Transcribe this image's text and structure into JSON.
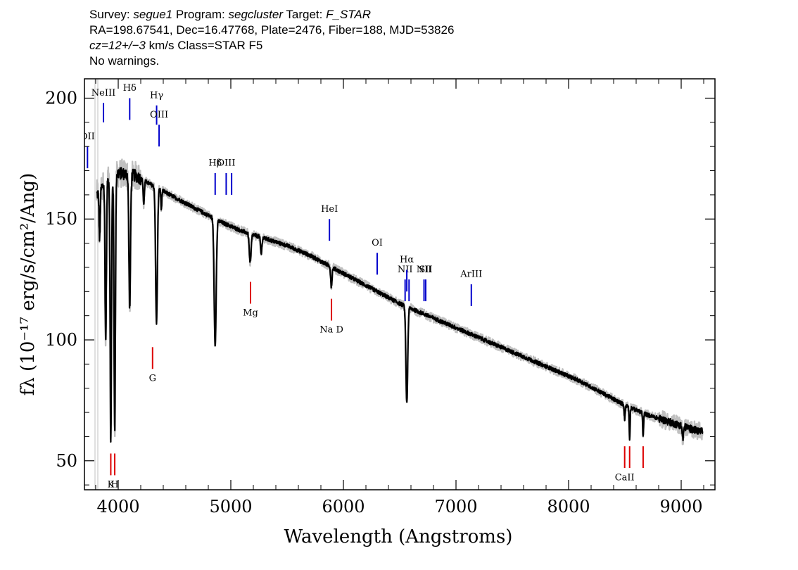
{
  "header": {
    "line1": {
      "survey_label": "Survey: ",
      "survey": "segue1",
      "program_label": " Program: ",
      "program": "segcluster",
      "target_label": " Target: ",
      "target": "F_STAR"
    },
    "line2": "RA=198.67541, Dec=16.47768, Plate=2476, Fiber=188, MJD=53826",
    "line3": {
      "cz": "cz=12+/−3",
      "rest": " km/s Class=STAR F5"
    },
    "line4": "No warnings."
  },
  "chart_data": {
    "type": "line",
    "xlabel": "Wavelength (Angstroms)",
    "ylabel": "fλ (10⁻¹⁷ erg/s/cm²/Ang)",
    "xlim": [
      3700,
      9300
    ],
    "ylim": [
      38,
      208
    ],
    "x_ticks": [
      4000,
      5000,
      6000,
      7000,
      8000,
      9000
    ],
    "y_ticks": [
      50,
      100,
      150,
      200
    ],
    "colors": {
      "flux": "#000000",
      "error": "#c0c0c0",
      "emission": "#0000cc",
      "absorption": "#dd0000"
    },
    "continuum": [
      [
        3810,
        160
      ],
      [
        3900,
        166
      ],
      [
        4000,
        169
      ],
      [
        4150,
        168
      ],
      [
        4300,
        164
      ],
      [
        4500,
        159
      ],
      [
        4700,
        154
      ],
      [
        4900,
        149
      ],
      [
        5100,
        145
      ],
      [
        5300,
        142
      ],
      [
        5500,
        139
      ],
      [
        5700,
        135
      ],
      [
        5900,
        130
      ],
      [
        6100,
        125
      ],
      [
        6300,
        120
      ],
      [
        6500,
        115
      ],
      [
        6700,
        111
      ],
      [
        6900,
        107
      ],
      [
        7100,
        103
      ],
      [
        7300,
        99
      ],
      [
        7500,
        95
      ],
      [
        7700,
        91
      ],
      [
        7900,
        87
      ],
      [
        8100,
        83
      ],
      [
        8300,
        78
      ],
      [
        8500,
        73
      ],
      [
        8700,
        69
      ],
      [
        8900,
        66
      ],
      [
        9100,
        63
      ],
      [
        9190,
        62
      ]
    ],
    "absorption_features": [
      {
        "center": 3835,
        "depth": 20,
        "width": 5
      },
      {
        "center": 3889,
        "depth": 66,
        "width": 6
      },
      {
        "center": 3934,
        "depth": 108,
        "width": 6
      },
      {
        "center": 3969,
        "depth": 105,
        "width": 6
      },
      {
        "center": 4102,
        "depth": 55,
        "width": 7
      },
      {
        "center": 4227,
        "depth": 10,
        "width": 5
      },
      {
        "center": 4340,
        "depth": 56,
        "width": 8
      },
      {
        "center": 4383,
        "depth": 8,
        "width": 4
      },
      {
        "center": 4861,
        "depth": 52,
        "width": 9
      },
      {
        "center": 5172,
        "depth": 12,
        "width": 8
      },
      {
        "center": 5270,
        "depth": 7,
        "width": 6
      },
      {
        "center": 5893,
        "depth": 8,
        "width": 6
      },
      {
        "center": 6563,
        "depth": 40,
        "width": 8
      },
      {
        "center": 8498,
        "depth": 6,
        "width": 4
      },
      {
        "center": 8542,
        "depth": 13,
        "width": 4
      },
      {
        "center": 8662,
        "depth": 10,
        "width": 4
      },
      {
        "center": 9015,
        "depth": 5,
        "width": 6
      }
    ],
    "line_markers": [
      {
        "label": "OII",
        "x": 3727,
        "y_top": 180,
        "y_bottom": 171,
        "color": "emission",
        "label_y": 183
      },
      {
        "label": "NeIII",
        "x": 3869,
        "y_top": 198,
        "y_bottom": 190,
        "color": "emission",
        "label_y": 201
      },
      {
        "label": "Hδ",
        "x": 4102,
        "y_top": 200,
        "y_bottom": 191,
        "color": "emission",
        "label_y": 203
      },
      {
        "label": "Hγ",
        "x": 4341,
        "y_top": 197,
        "y_bottom": 189,
        "color": "emission",
        "label_y": 200
      },
      {
        "label": "OIII",
        "x": 4363,
        "y_top": 189,
        "y_bottom": 180,
        "color": "emission",
        "label_y": 192
      },
      {
        "label": "Hβ",
        "x": 4861,
        "y_top": 169,
        "y_bottom": 160,
        "color": "emission",
        "label_y": 172
      },
      {
        "label": "OIII",
        "x": 4959,
        "y_top": 169,
        "y_bottom": 160,
        "color": "emission",
        "label_y": 172
      },
      {
        "label": "",
        "x": 5007,
        "y_top": 169,
        "y_bottom": 160,
        "color": "emission",
        "label_y": 172
      },
      {
        "label": "HeI",
        "x": 5876,
        "y_top": 150,
        "y_bottom": 141,
        "color": "emission",
        "label_y": 153
      },
      {
        "label": "OI",
        "x": 6300,
        "y_top": 136,
        "y_bottom": 127,
        "color": "emission",
        "label_y": 139
      },
      {
        "label": "NII",
        "x": 6548,
        "y_top": 125,
        "y_bottom": 116,
        "color": "emission",
        "label_y": 128
      },
      {
        "label": "Hα",
        "x": 6563,
        "y_top": 129,
        "y_bottom": 120,
        "color": "emission",
        "label_y": 132
      },
      {
        "label": "",
        "x": 6583,
        "y_top": 125,
        "y_bottom": 116,
        "color": "emission",
        "label_y": 128
      },
      {
        "label": "NII",
        "x": 6716,
        "y_top": 125,
        "y_bottom": 116,
        "color": "emission",
        "label_y": 128
      },
      {
        "label": "SII",
        "x": 6731,
        "y_top": 125,
        "y_bottom": 116,
        "color": "emission",
        "label_y": 128
      },
      {
        "label": "ArIII",
        "x": 7136,
        "y_top": 123,
        "y_bottom": 114,
        "color": "emission",
        "label_y": 126
      },
      {
        "label": "K",
        "x": 3934,
        "y_top": 53,
        "y_bottom": 44,
        "color": "absorption",
        "label_y": 39
      },
      {
        "label": "H",
        "x": 3969,
        "y_top": 53,
        "y_bottom": 44,
        "color": "absorption",
        "label_y": 39
      },
      {
        "label": "G",
        "x": 4305,
        "y_top": 97,
        "y_bottom": 88,
        "color": "absorption",
        "label_y": 83
      },
      {
        "label": "Mg",
        "x": 5175,
        "y_top": 124,
        "y_bottom": 115,
        "color": "absorption",
        "label_y": 110
      },
      {
        "label": "Na D",
        "x": 5894,
        "y_top": 117,
        "y_bottom": 108,
        "color": "absorption",
        "label_y": 103
      },
      {
        "label": "CaII",
        "x": 8498,
        "y_top": 56,
        "y_bottom": 47,
        "color": "absorption",
        "label_y": 42
      },
      {
        "label": "",
        "x": 8542,
        "y_top": 56,
        "y_bottom": 47,
        "color": "absorption",
        "label_y": 42
      },
      {
        "label": "",
        "x": 8662,
        "y_top": 56,
        "y_bottom": 47,
        "color": "absorption",
        "label_y": 42
      }
    ]
  }
}
